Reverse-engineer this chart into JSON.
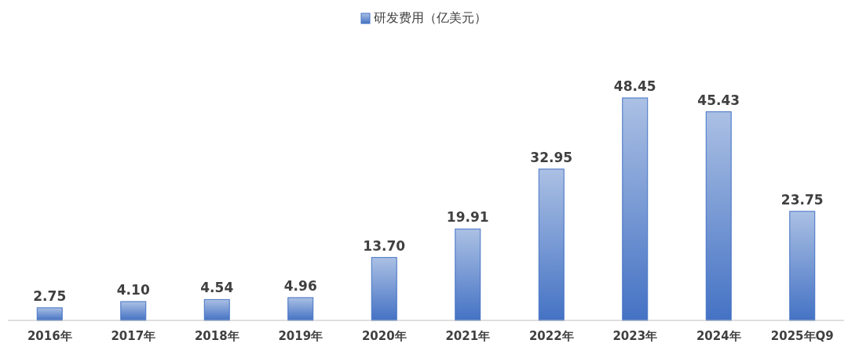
{
  "chart_data": {
    "type": "bar",
    "categories": [
      "2016年",
      "2017年",
      "2018年",
      "2019年",
      "2020年",
      "2021年",
      "2022年",
      "2023年",
      "2024年",
      "2025年Q9"
    ],
    "series": [
      {
        "name": "研发费用（亿美元）",
        "color": "#4472c4",
        "values": [
          2.75,
          4.1,
          4.54,
          4.96,
          13.7,
          19.91,
          32.95,
          48.45,
          45.43,
          23.75
        ],
        "value_labels": [
          "2.75",
          "4.10",
          "4.54",
          "4.96",
          "13.70",
          "19.91",
          "32.95",
          "48.45",
          "45.43",
          "23.75"
        ]
      }
    ],
    "legend": "top"
  }
}
